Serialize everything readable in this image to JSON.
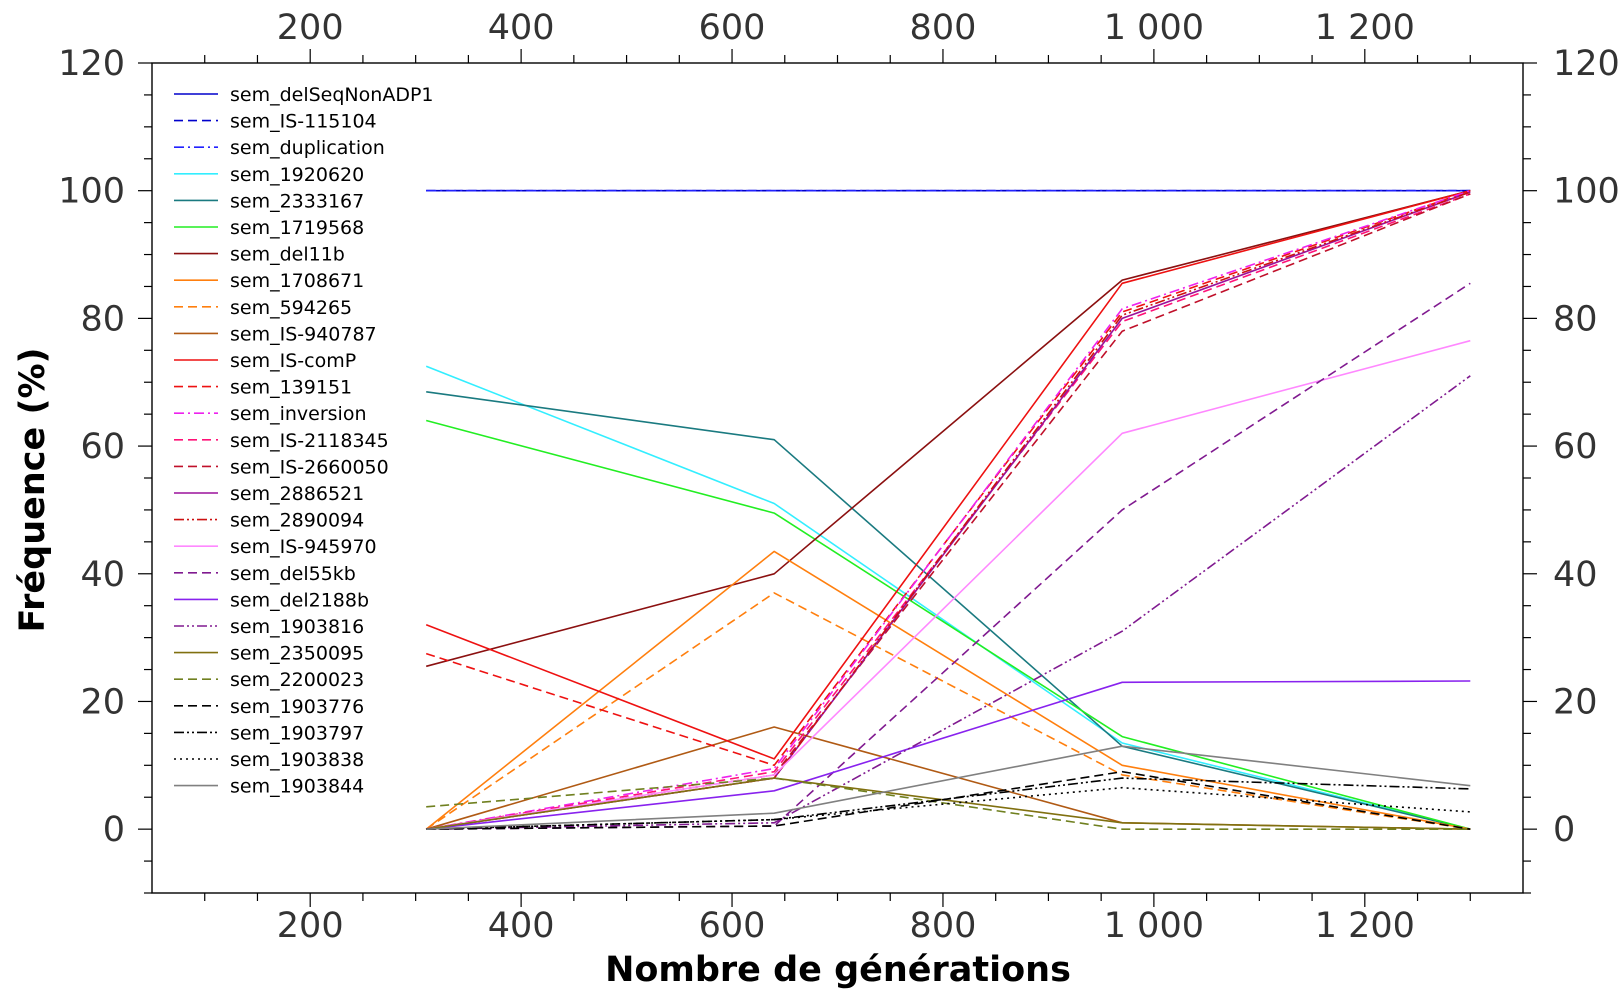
{
  "chart_data": {
    "type": "line",
    "title": "",
    "xlabel": "Nombre de générations",
    "ylabel": "Fréquence (%)",
    "xlim": [
      50,
      1350
    ],
    "ylim": [
      -10,
      120
    ],
    "x_ticks": [
      200,
      400,
      600,
      800,
      1000,
      1200
    ],
    "x_tick_labels": [
      "200",
      "400",
      "600",
      "800",
      "1 000",
      "1 200"
    ],
    "y_ticks": [
      0,
      20,
      40,
      60,
      80,
      100,
      120
    ],
    "y_tick_labels": [
      "0",
      "20",
      "40",
      "60",
      "80",
      "100",
      "120"
    ],
    "grid": false,
    "legend_position": "top-left",
    "x": [
      310,
      640,
      970,
      1300
    ],
    "series": [
      {
        "name": "sem_delSeqNonADP1",
        "color": "#0000cc",
        "dash": "solid",
        "values": [
          100,
          100,
          100,
          100
        ]
      },
      {
        "name": "sem_IS-115104",
        "color": "#0000cc",
        "dash": "dashed",
        "values": [
          100,
          100,
          100,
          100
        ]
      },
      {
        "name": "sem_duplication",
        "color": "#2222ff",
        "dash": "dashdot",
        "values": [
          100,
          100,
          100,
          100
        ]
      },
      {
        "name": "sem_1920620",
        "color": "#33eeff",
        "dash": "solid",
        "values": [
          72.5,
          51,
          13.5,
          0
        ]
      },
      {
        "name": "sem_2333167",
        "color": "#1a7a80",
        "dash": "solid",
        "values": [
          68.5,
          61,
          13,
          0
        ]
      },
      {
        "name": "sem_1719568",
        "color": "#22ee22",
        "dash": "solid",
        "values": [
          64,
          49.5,
          14.5,
          0
        ]
      },
      {
        "name": "sem_del11b",
        "color": "#8b1010",
        "dash": "solid",
        "values": [
          25.5,
          40,
          86,
          100
        ]
      },
      {
        "name": "sem_1708671",
        "color": "#ff7f0e",
        "dash": "solid",
        "values": [
          0,
          43.5,
          10,
          0
        ]
      },
      {
        "name": "sem_594265",
        "color": "#ff7f0e",
        "dash": "dashed",
        "values": [
          0,
          37,
          8.5,
          0
        ]
      },
      {
        "name": "sem_IS-940787",
        "color": "#b05a14",
        "dash": "solid",
        "values": [
          0,
          16,
          1,
          0
        ]
      },
      {
        "name": "sem_IS-comP",
        "color": "#ee1111",
        "dash": "solid",
        "values": [
          32,
          11,
          85.5,
          100
        ]
      },
      {
        "name": "sem_139151",
        "color": "#ee1111",
        "dash": "dashed",
        "values": [
          27.5,
          10,
          81,
          100
        ]
      },
      {
        "name": "sem_inversion",
        "color": "#ee22ee",
        "dash": "dashdot",
        "values": [
          0,
          9.5,
          81.5,
          100
        ]
      },
      {
        "name": "sem_IS-2118345",
        "color": "#ff1177",
        "dash": "dashed",
        "values": [
          0,
          9,
          79.5,
          99.5
        ]
      },
      {
        "name": "sem_IS-2660050",
        "color": "#c0102a",
        "dash": "dashed",
        "values": [
          0,
          8.5,
          78,
          99.5
        ]
      },
      {
        "name": "sem_2886521",
        "color": "#9b119b",
        "dash": "solid",
        "values": [
          0,
          8,
          80,
          99.8
        ]
      },
      {
        "name": "sem_2890094",
        "color": "#cc1111",
        "dash": "dashdotdot",
        "values": [
          0,
          8,
          80.5,
          99.8
        ]
      },
      {
        "name": "sem_IS-945970",
        "color": "#ff88ff",
        "dash": "solid",
        "values": [
          0,
          8.5,
          62,
          76.5
        ]
      },
      {
        "name": "sem_del55kb",
        "color": "#801a90",
        "dash": "dashed",
        "values": [
          0,
          0.5,
          50,
          85.5
        ]
      },
      {
        "name": "sem_del2188b",
        "color": "#8822ee",
        "dash": "solid",
        "values": [
          0,
          6,
          23,
          23.2
        ]
      },
      {
        "name": "sem_1903816",
        "color": "#801a90",
        "dash": "dashdotdot",
        "values": [
          0,
          1,
          31,
          71
        ]
      },
      {
        "name": "sem_2350095",
        "color": "#807010",
        "dash": "solid",
        "values": [
          0,
          8,
          1,
          0
        ]
      },
      {
        "name": "sem_2200023",
        "color": "#708020",
        "dash": "dashed",
        "values": [
          3.5,
          8,
          0,
          0
        ]
      },
      {
        "name": "sem_1903776",
        "color": "#000000",
        "dash": "dashed",
        "values": [
          0,
          0.5,
          9,
          0
        ]
      },
      {
        "name": "sem_1903797",
        "color": "#000000",
        "dash": "dashdotdot",
        "values": [
          0,
          1.5,
          8,
          6.3
        ]
      },
      {
        "name": "sem_1903838",
        "color": "#000000",
        "dash": "dotted",
        "values": [
          0,
          1.5,
          6.5,
          2.7
        ]
      },
      {
        "name": "sem_1903844",
        "color": "#808080",
        "dash": "solid",
        "values": [
          0,
          2.5,
          13,
          6.8
        ]
      }
    ]
  }
}
